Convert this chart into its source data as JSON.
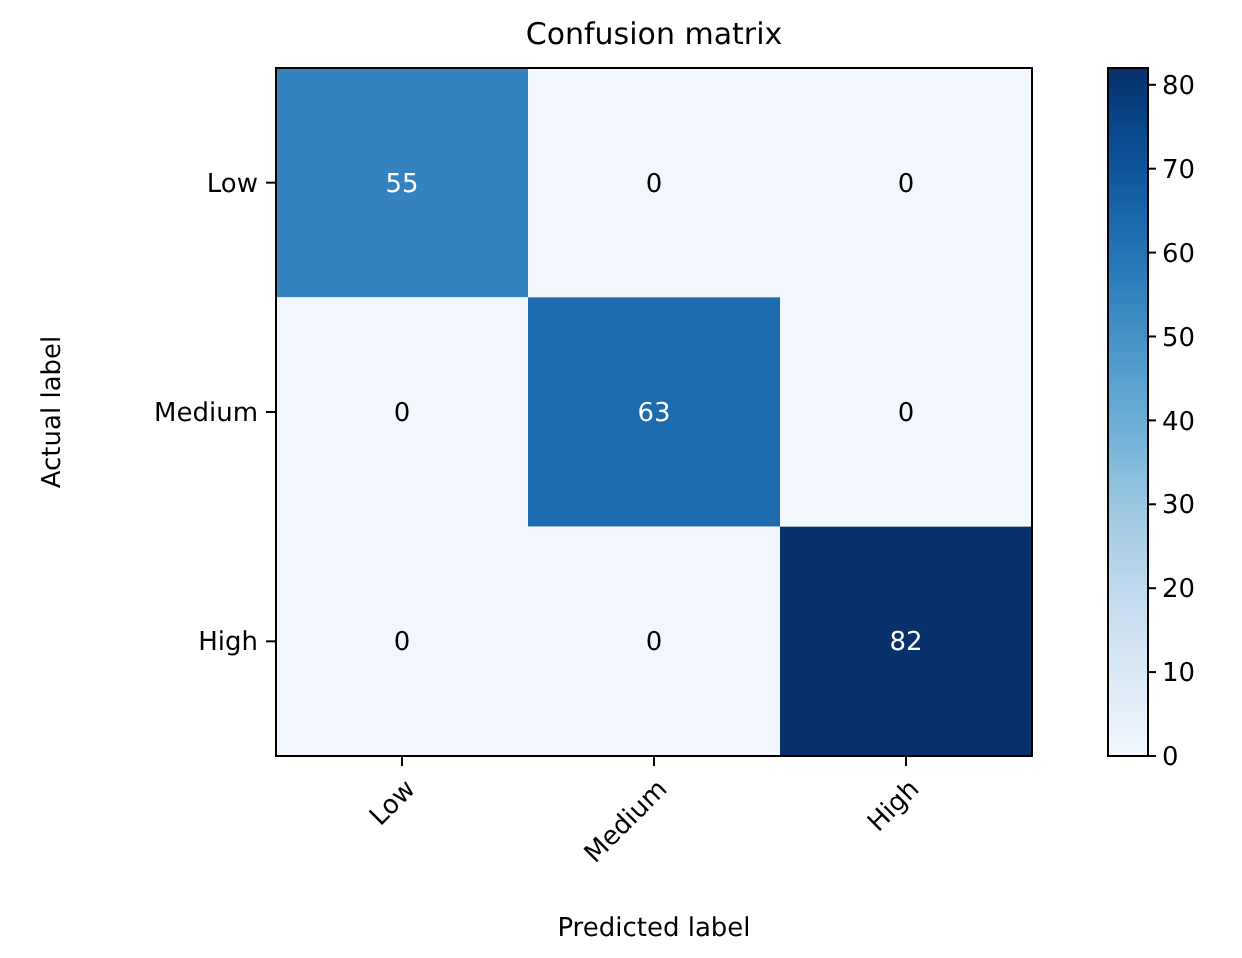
{
  "chart_data": {
    "type": "heatmap",
    "title": "Confusion matrix",
    "xlabel": "Predicted label",
    "ylabel": "Actual label",
    "categories": [
      "Low",
      "Medium",
      "High"
    ],
    "y_categories": [
      "Low",
      "Medium",
      "High"
    ],
    "cells": [
      [
        55,
        0,
        0
      ],
      [
        0,
        63,
        0
      ],
      [
        0,
        0,
        82
      ]
    ],
    "clim": [
      0,
      82
    ],
    "cticks": [
      0,
      10,
      20,
      30,
      40,
      50,
      60,
      70,
      80
    ],
    "data_labels": true
  }
}
